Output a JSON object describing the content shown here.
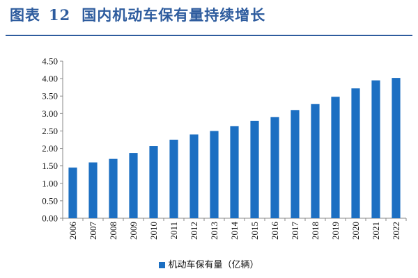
{
  "header": {
    "figure_label": "图表",
    "figure_number": "12",
    "title": "国内机动车保有量持续增长"
  },
  "chart_data": {
    "type": "bar",
    "categories": [
      "2006",
      "2007",
      "2008",
      "2009",
      "2010",
      "2011",
      "2012",
      "2013",
      "2014",
      "2015",
      "2016",
      "2017",
      "2018",
      "2019",
      "2020",
      "2021",
      "2022"
    ],
    "series": [
      {
        "name": "机动车保有量（亿辆）",
        "values": [
          1.45,
          1.6,
          1.7,
          1.87,
          2.07,
          2.25,
          2.4,
          2.5,
          2.64,
          2.79,
          2.9,
          3.1,
          3.27,
          3.48,
          3.72,
          3.95,
          4.02
        ]
      }
    ],
    "yticks": [
      "0.00",
      "0.50",
      "1.00",
      "1.50",
      "2.00",
      "2.50",
      "3.00",
      "3.50",
      "4.00",
      "4.50"
    ],
    "ylim": [
      0,
      4.5
    ],
    "bar_color": "#1C6FC2",
    "axis_color": "#888888",
    "legend_position": "bottom-center",
    "grid": false
  }
}
